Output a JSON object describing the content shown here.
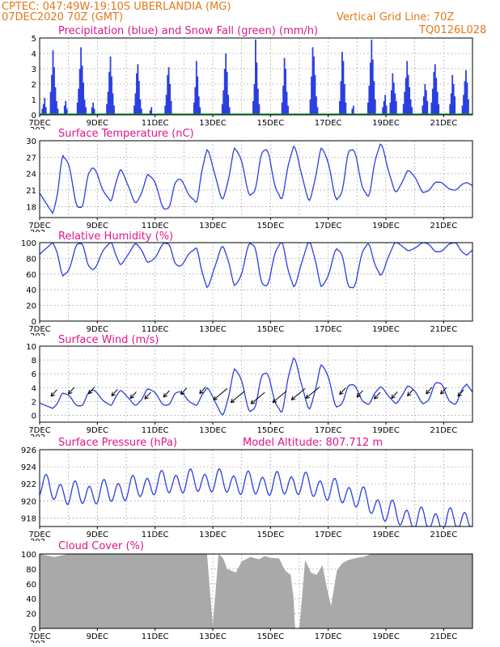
{
  "header": {
    "line1_left": "CPTEC:   047:49W-19:10S   UBERLANDIA (MG)",
    "line2_left": "07DEC2020 70Z (GMT)",
    "line2_right": "Vertical Grid Line: 70Z",
    "code": "TQ0126L028"
  },
  "colors": {
    "header": "#e07a1a",
    "titles": "#e0168a",
    "lines": "#2b3fe0",
    "precip": "#2b3fe0",
    "snow": "#0a9a2a",
    "cloud": "#a9a9a9"
  },
  "x_axis": {
    "labels": [
      "7DEC",
      "9DEC",
      "11DEC",
      "13DEC",
      "15DEC",
      "17DEC",
      "19DEC",
      "21DEC"
    ],
    "label_days": [
      0,
      2,
      4,
      6,
      8,
      10,
      12,
      14
    ],
    "start_day": 0,
    "end_day": 15,
    "cropped_label": "202"
  },
  "chart_data": [
    {
      "type": "bar",
      "title": "Precipitation (blue) and Snow Fall (green) (mm/h)",
      "ylim": [
        0,
        5
      ],
      "yticks": [
        "0",
        "1",
        "2",
        "3",
        "4",
        "5"
      ],
      "grid": true,
      "series": [
        {
          "name": "blue",
          "description": "precipitation",
          "events": [
            {
              "day": 0.15,
              "values": [
                0.4,
                0.7,
                1.1,
                0.5
              ]
            },
            {
              "day": 0.5,
              "values": [
                1.5,
                2.6,
                4.2,
                3.1,
                1.8,
                0.9,
                0.4
              ]
            },
            {
              "day": 0.9,
              "values": [
                0.6,
                0.9,
                0.4
              ]
            },
            {
              "day": 1.45,
              "values": [
                0.8,
                1.7,
                3.0,
                4.4,
                3.2,
                2.1,
                1.0,
                0.5
              ]
            },
            {
              "day": 1.85,
              "values": [
                0.5,
                0.8,
                0.4
              ]
            },
            {
              "day": 2.45,
              "values": [
                0.7,
                1.5,
                2.8,
                3.8,
                2.5,
                1.4,
                0.6
              ]
            },
            {
              "day": 3.4,
              "values": [
                0.6,
                1.4,
                2.7,
                3.3,
                2.2,
                1.0,
                0.4
              ]
            },
            {
              "day": 3.85,
              "values": [
                0.3,
                0.5
              ]
            },
            {
              "day": 4.45,
              "values": [
                0.6,
                1.3,
                2.6,
                3.1,
                2.0,
                0.9
              ]
            },
            {
              "day": 5.45,
              "values": [
                0.8,
                1.8,
                3.5,
                2.5,
                1.2,
                0.5
              ]
            },
            {
              "day": 6.45,
              "values": [
                0.7,
                1.6,
                3.0,
                4.0,
                2.8,
                1.3,
                0.5
              ]
            },
            {
              "day": 7.5,
              "values": [
                0.9,
                2.0,
                4.9,
                3.4,
                1.7,
                0.7
              ]
            },
            {
              "day": 8.5,
              "values": [
                0.8,
                1.9,
                3.7,
                3.0,
                1.5,
                0.6
              ]
            },
            {
              "day": 9.5,
              "values": [
                1.0,
                2.5,
                4.4,
                3.8,
                2.6,
                1.2,
                0.5
              ]
            },
            {
              "day": 10.5,
              "values": [
                0.9,
                2.2,
                4.1,
                3.5,
                2.0,
                0.8
              ]
            },
            {
              "day": 10.85,
              "values": [
                0.4,
                0.6
              ]
            },
            {
              "day": 11.5,
              "values": [
                0.8,
                1.9,
                3.4,
                4.9,
                3.6,
                2.2,
                1.0
              ]
            },
            {
              "day": 11.95,
              "values": [
                0.5,
                0.9,
                1.3,
                0.6
              ]
            },
            {
              "day": 12.25,
              "values": [
                0.8,
                1.6,
                2.7,
                2.1,
                1.4,
                0.9
              ]
            },
            {
              "day": 12.75,
              "values": [
                0.7,
                1.5,
                2.4,
                3.5,
                2.6,
                1.8,
                1.0,
                0.5
              ]
            },
            {
              "day": 13.35,
              "values": [
                0.6,
                1.2,
                2.0,
                1.6,
                0.9
              ]
            },
            {
              "day": 13.7,
              "values": [
                0.8,
                1.7,
                2.8,
                3.3,
                2.4,
                1.5,
                0.7
              ]
            },
            {
              "day": 14.3,
              "values": [
                0.7,
                1.4,
                2.6,
                2.0,
                1.2
              ]
            },
            {
              "day": 14.75,
              "values": [
                0.6,
                1.3,
                2.2,
                2.9,
                2.1,
                1.0
              ]
            }
          ]
        },
        {
          "name": "green",
          "description": "snow fall",
          "values_all": 0
        }
      ]
    },
    {
      "type": "line",
      "title": "Surface Temperature (nC)",
      "ylim": [
        16,
        30
      ],
      "yticks": [
        "18",
        "21",
        "24",
        "27",
        "30"
      ],
      "grid": true,
      "series": [
        {
          "name": "",
          "day_min": [
            0.45,
            1.4,
            2.45,
            3.35,
            4.4,
            5.4,
            6.35,
            7.35,
            8.35,
            9.35,
            10.35,
            11.35,
            12.35,
            13.35,
            14.35
          ],
          "mins": [
            16.8,
            17.6,
            19.2,
            18.8,
            17.4,
            19.0,
            19.6,
            20.0,
            19.6,
            19.4,
            19.3,
            20.0,
            20.8,
            20.6,
            21.0
          ],
          "day_max": [
            0.85,
            1.8,
            2.8,
            3.8,
            4.8,
            5.8,
            6.8,
            7.8,
            8.8,
            9.8,
            10.8,
            11.8,
            12.8,
            13.8,
            14.8
          ],
          "maxs": [
            27.2,
            25.0,
            24.5,
            23.8,
            23.0,
            28.0,
            28.5,
            28.5,
            28.6,
            28.5,
            28.6,
            29.1,
            24.5,
            22.5,
            22.4
          ]
        }
      ]
    },
    {
      "type": "line",
      "title": "Relative Humidity (%)",
      "ylim": [
        0,
        100
      ],
      "yticks": [
        "0",
        "20",
        "40",
        "60",
        "80",
        "100"
      ],
      "grid": true,
      "series": [
        {
          "name": "",
          "day_min": [
            0.85,
            1.8,
            2.8,
            3.8,
            4.8,
            5.8,
            6.8,
            7.8,
            8.8,
            9.8,
            10.8,
            11.8,
            12.8,
            13.8,
            14.8
          ],
          "mins": [
            58,
            66,
            73,
            75,
            70,
            45,
            46,
            44,
            46,
            45,
            41,
            60,
            90,
            88,
            84
          ],
          "day_max": [
            0.45,
            1.4,
            2.45,
            3.35,
            4.4,
            5.4,
            6.35,
            7.35,
            8.35,
            9.35,
            10.35,
            11.35,
            12.35,
            13.35,
            14.35
          ],
          "maxs": [
            100,
            100,
            100,
            98,
            100,
            92,
            94,
            100,
            100,
            100,
            92,
            98,
            100,
            100,
            100
          ]
        }
      ]
    },
    {
      "type": "line",
      "title": "Surface Wind (m/s)",
      "ylim": [
        -1,
        10
      ],
      "yticks": [
        "0",
        "2",
        "4",
        "6",
        "8",
        "10"
      ],
      "grid": true,
      "series": [
        {
          "name": "",
          "day_min": [
            0.45,
            1.4,
            2.45,
            3.35,
            4.4,
            5.4,
            6.35,
            7.35,
            8.35,
            9.35,
            10.35,
            11.35,
            12.35,
            13.35,
            14.35
          ],
          "mins": [
            1.0,
            1.3,
            1.5,
            1.5,
            1.4,
            1.5,
            0.2,
            0.5,
            0.6,
            1.1,
            1.2,
            1.6,
            1.8,
            1.7,
            1.6
          ],
          "day_max": [
            0.85,
            1.8,
            2.8,
            3.8,
            4.8,
            5.8,
            6.8,
            7.8,
            8.8,
            9.8,
            10.8,
            11.8,
            12.8,
            13.8,
            14.8
          ],
          "maxs": [
            3.2,
            3.6,
            3.5,
            3.8,
            3.4,
            3.8,
            6.6,
            6.2,
            8.0,
            7.2,
            4.5,
            4.0,
            4.2,
            4.8,
            4.5
          ]
        }
      ],
      "wind_arrows_days": [
        0.6,
        1.2,
        1.9,
        2.7,
        3.35,
        3.85,
        4.5,
        5.1,
        5.75,
        6.5,
        7.1,
        7.8,
        8.55,
        9.2,
        9.7,
        10.6,
        11.2,
        11.8,
        12.4,
        12.95,
        13.6,
        14.1,
        14.7
      ]
    },
    {
      "type": "line",
      "title": "Surface Pressure (hPa)",
      "annotation": "Model Altitude: 807.712 m",
      "ylim": [
        917,
        926
      ],
      "yticks": [
        "918",
        "920",
        "922",
        "924",
        "926"
      ],
      "grid": true,
      "series": [
        {
          "name": "",
          "trend_days": [
            0,
            1,
            2,
            3,
            4,
            5,
            6,
            7,
            8,
            9,
            10,
            11,
            12,
            13,
            14,
            15
          ],
          "trend": [
            921.8,
            920.8,
            920.9,
            921.3,
            922.0,
            922.2,
            922.3,
            922.0,
            921.9,
            922.0,
            921.3,
            920.5,
            918.8,
            917.8,
            917.6,
            917.9
          ],
          "diurnal_amp": 1.4
        }
      ]
    },
    {
      "type": "area",
      "title": "Cloud Cover (%)",
      "ylim": [
        0,
        100
      ],
      "yticks": [
        "0",
        "20",
        "40",
        "60",
        "80",
        "100"
      ],
      "grid": true,
      "series": [
        {
          "name": "",
          "days": [
            0,
            0.5,
            1,
            2,
            3,
            4,
            4.5,
            5,
            5.5,
            5.8,
            6.0,
            6.2,
            6.35,
            6.5,
            6.8,
            7.0,
            7.3,
            7.6,
            7.8,
            8.0,
            8.3,
            8.5,
            8.7,
            8.8,
            8.85,
            9.0,
            9.2,
            9.4,
            9.6,
            9.8,
            9.95,
            10.1,
            10.3,
            10.5,
            10.7,
            10.9,
            11.0,
            11.2,
            11.5,
            11.8,
            12,
            13,
            14,
            15
          ],
          "values": [
            100,
            96,
            100,
            100,
            100,
            100,
            100,
            100,
            100,
            100,
            4,
            100,
            95,
            80,
            75,
            90,
            96,
            93,
            97,
            95,
            94,
            78,
            72,
            40,
            0,
            0,
            92,
            75,
            72,
            85,
            55,
            30,
            78,
            88,
            92,
            94,
            95,
            96,
            100,
            100,
            100,
            100,
            100,
            100
          ]
        }
      ]
    }
  ]
}
